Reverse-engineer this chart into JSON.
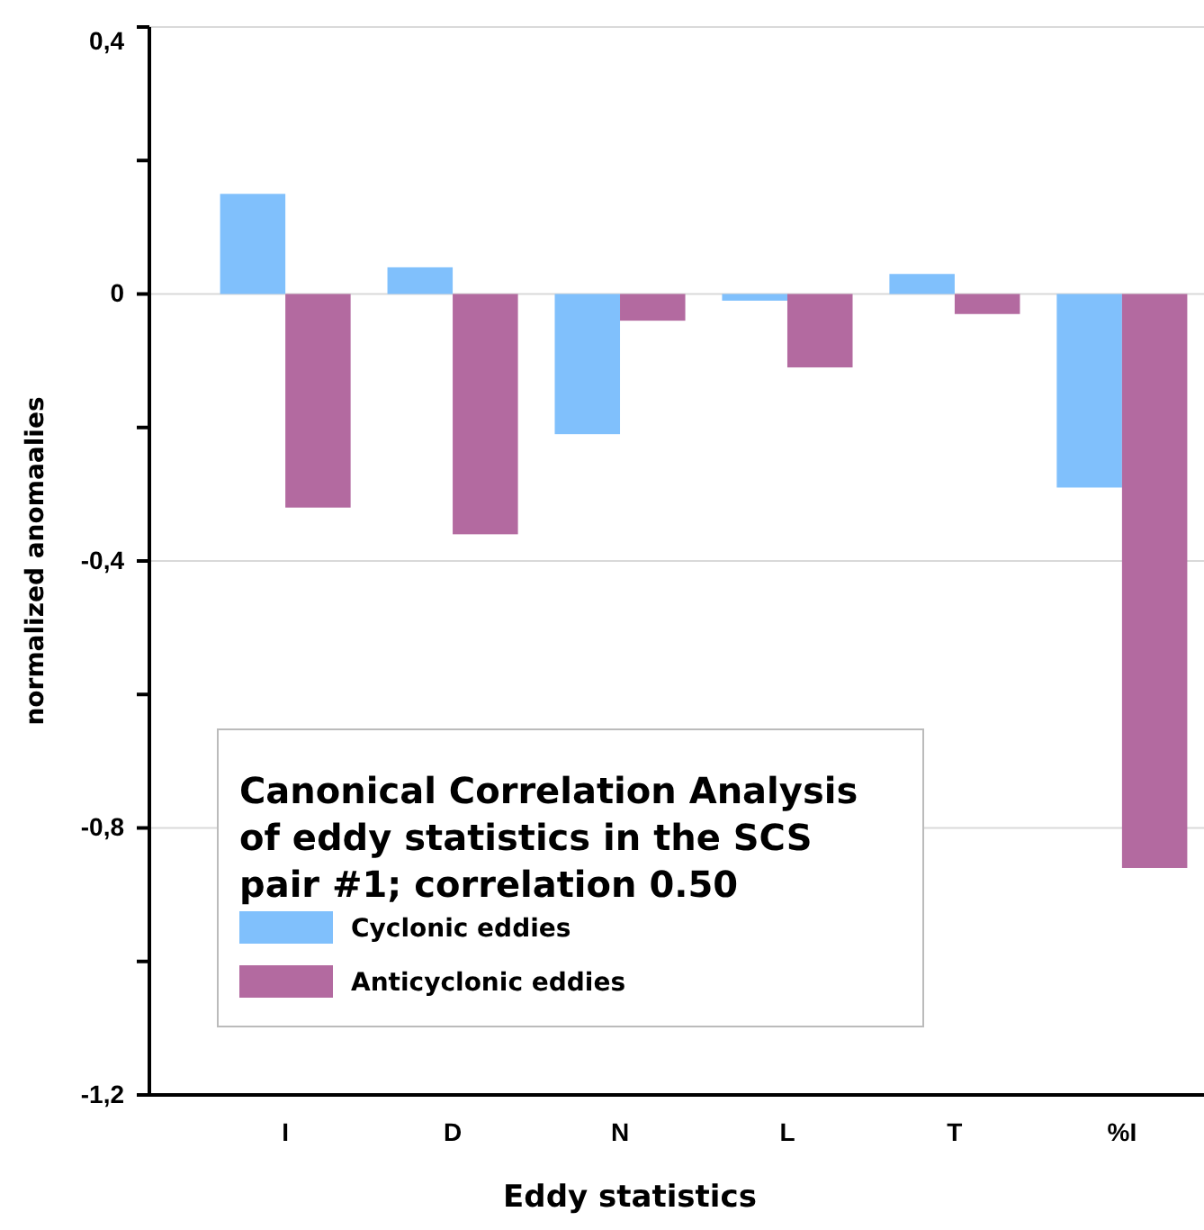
{
  "chart_data": {
    "type": "bar",
    "xlabel": "Eddy statistics",
    "ylabel": "normalized anomaalies",
    "legend_title": "Canonical Correlation Analysis of eddy statistics in the SCS pair #1; correlation 0.50",
    "categories": [
      "I",
      "D",
      "N",
      "L",
      "T",
      "%I"
    ],
    "series": [
      {
        "name": "Cyclonic eddies",
        "color": "#80c0fc",
        "values": [
          0.15,
          0.04,
          -0.21,
          -0.01,
          0.03,
          -0.29
        ]
      },
      {
        "name": "Anticyclonic eddies",
        "color": "#b36aa0",
        "values": [
          -0.32,
          -0.36,
          -0.04,
          -0.11,
          -0.03,
          -0.86
        ]
      }
    ],
    "ylim": [
      -1.2,
      0.4
    ],
    "yticks": [
      {
        "value": 0.4,
        "label": "0,4"
      },
      {
        "value": 0.2,
        "label": null
      },
      0,
      {
        "value": -0.2,
        "label": null
      },
      {
        "value": -0.4,
        "label": "-0,4"
      },
      {
        "value": -0.6,
        "label": null
      },
      {
        "value": -0.8,
        "label": "-0,8"
      },
      {
        "value": -1.0,
        "label": null
      },
      {
        "value": -1.2,
        "label": "-1,2"
      }
    ],
    "grid": "y",
    "legend": "bottom left"
  }
}
